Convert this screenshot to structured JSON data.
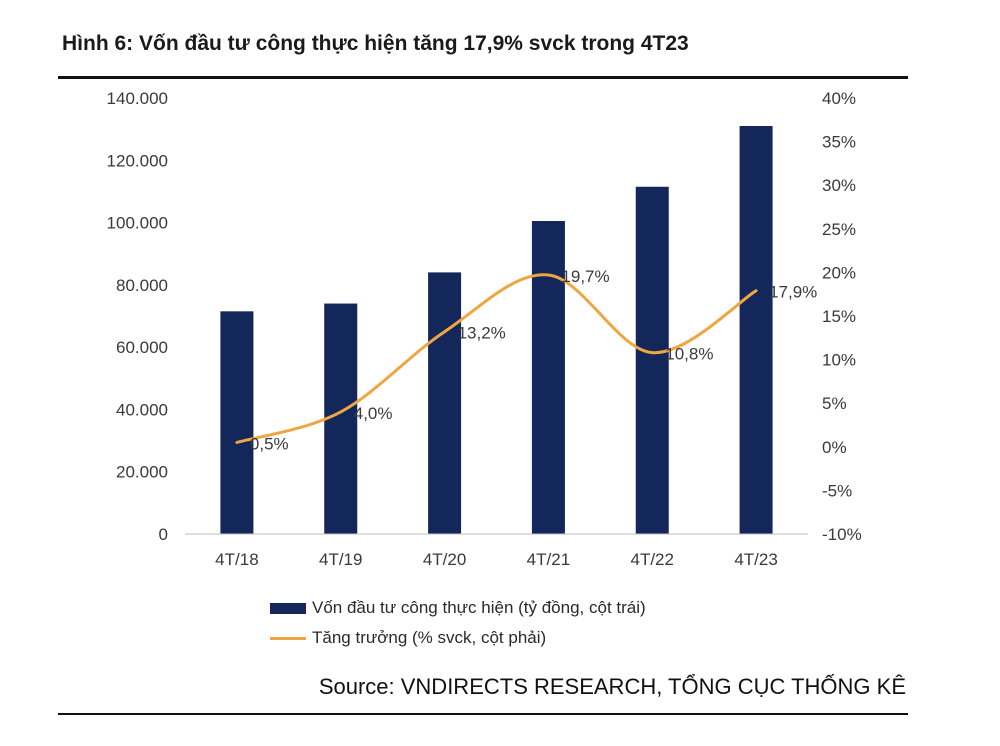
{
  "title": "Hình 6: Vốn đầu tư công thực hiện tăng 17,9% svck trong 4T23",
  "source": "Source: VNDIRECTS RESEARCH, TỔNG CỤC THỐNG KÊ",
  "colors": {
    "bar": "#13275a",
    "line": "#f0a640"
  },
  "chart_data": {
    "type": "bar",
    "categories": [
      "4T/18",
      "4T/19",
      "4T/20",
      "4T/21",
      "4T/22",
      "4T/23"
    ],
    "series": [
      {
        "name": "Vốn đầu tư công thực hiện (tỷ đồng, cột trái)",
        "type": "bar",
        "axis": "left",
        "values": [
          71500,
          74000,
          84000,
          100500,
          111500,
          131000
        ]
      },
      {
        "name": "Tăng trưởng (% svck, cột phải)",
        "type": "line",
        "axis": "right",
        "smooth": true,
        "values": [
          0.5,
          4.0,
          13.2,
          19.7,
          10.8,
          17.9
        ],
        "data_labels": [
          "0,5%",
          "4,0%",
          "13,2%",
          "19,7%",
          "10,8%",
          "17,9%"
        ]
      }
    ],
    "y_left": {
      "range": [
        0,
        140000
      ],
      "ticks": [
        0,
        20000,
        40000,
        60000,
        80000,
        100000,
        120000,
        140000
      ],
      "tick_labels": [
        "0",
        "20.000",
        "40.000",
        "60.000",
        "80.000",
        "100.000",
        "120.000",
        "140.000"
      ]
    },
    "y_right": {
      "range": [
        -10,
        40
      ],
      "ticks": [
        -10,
        -5,
        0,
        5,
        10,
        15,
        20,
        25,
        30,
        35,
        40
      ],
      "tick_labels": [
        "-10%",
        "-5%",
        "0%",
        "5%",
        "10%",
        "15%",
        "20%",
        "25%",
        "30%",
        "35%",
        "40%"
      ]
    },
    "grid": false,
    "legend_position": "bottom"
  }
}
